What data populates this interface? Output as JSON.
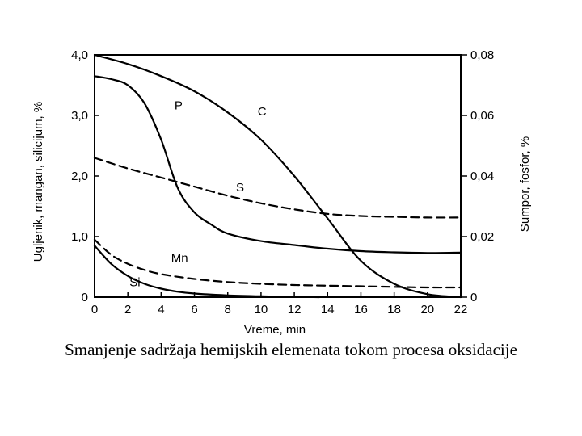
{
  "caption": "Smanjenje sadržaja hemijskih elemenata tokom procesa oksidacije",
  "chart_data": {
    "type": "line",
    "xlabel": "Vreme, min",
    "ylabel_left": "Ugljenik, mangan, silicijum, %",
    "ylabel_right": "Sumpor, fosfor, %",
    "xlim": [
      0,
      22
    ],
    "ylim_left": [
      0,
      4.0
    ],
    "ylim_right": [
      0,
      0.08
    ],
    "x_ticks": [
      "0",
      "2",
      "4",
      "6",
      "8",
      "10",
      "12",
      "14",
      "16",
      "18",
      "20",
      "22"
    ],
    "y_ticks_left": [
      "0",
      "1,0",
      "2,0",
      "3,0",
      "4,0"
    ],
    "y_ticks_right": [
      "0",
      "0,02",
      "0,04",
      "0,06",
      "0,08"
    ],
    "grid": false,
    "series": [
      {
        "name": "C",
        "axis": "left",
        "style": "solid",
        "x": [
          0,
          2,
          4,
          6,
          8,
          10,
          12,
          14,
          16,
          18,
          20,
          22
        ],
        "y": [
          4.0,
          3.85,
          3.65,
          3.4,
          3.05,
          2.6,
          2.0,
          1.3,
          0.6,
          0.22,
          0.05,
          0.0
        ]
      },
      {
        "name": "P",
        "axis": "right",
        "style": "solid",
        "x": [
          0,
          1,
          2,
          3,
          4,
          5,
          6,
          7,
          8,
          10,
          12,
          14,
          16,
          18,
          20,
          22
        ],
        "y": [
          0.073,
          0.072,
          0.07,
          0.064,
          0.052,
          0.036,
          0.028,
          0.024,
          0.021,
          0.0185,
          0.0172,
          0.016,
          0.0152,
          0.0148,
          0.0146,
          0.0147
        ]
      },
      {
        "name": "S",
        "axis": "right",
        "style": "dashed",
        "x": [
          0,
          2,
          4,
          6,
          8,
          10,
          12,
          14,
          16,
          18,
          20,
          22
        ],
        "y": [
          0.046,
          0.0425,
          0.0395,
          0.0365,
          0.0335,
          0.031,
          0.029,
          0.0275,
          0.0268,
          0.0265,
          0.0263,
          0.0263
        ]
      },
      {
        "name": "Mn",
        "axis": "left",
        "style": "dashed",
        "x": [
          0,
          1,
          2,
          3,
          4,
          6,
          8,
          10,
          12,
          14,
          16,
          18,
          20,
          22
        ],
        "y": [
          0.95,
          0.7,
          0.55,
          0.45,
          0.38,
          0.3,
          0.25,
          0.22,
          0.2,
          0.19,
          0.18,
          0.17,
          0.16,
          0.16
        ]
      },
      {
        "name": "Si",
        "axis": "left",
        "style": "solid",
        "x": [
          0,
          1,
          2,
          3,
          4,
          5,
          6,
          8,
          10,
          12,
          13.5
        ],
        "y": [
          0.85,
          0.55,
          0.35,
          0.22,
          0.14,
          0.09,
          0.06,
          0.03,
          0.015,
          0.006,
          0.0
        ]
      }
    ],
    "labels": [
      {
        "series": "C",
        "text": "C",
        "x": 9.8,
        "y": 3.0
      },
      {
        "series": "P",
        "text": "P",
        "x": 4.8,
        "y": 3.1
      },
      {
        "series": "S",
        "text": "S",
        "x": 8.5,
        "y": 1.75
      },
      {
        "series": "Mn",
        "text": "Mn",
        "x": 4.6,
        "y": 0.58
      },
      {
        "series": "Si",
        "text": "Si",
        "x": 2.1,
        "y": 0.18
      }
    ]
  }
}
